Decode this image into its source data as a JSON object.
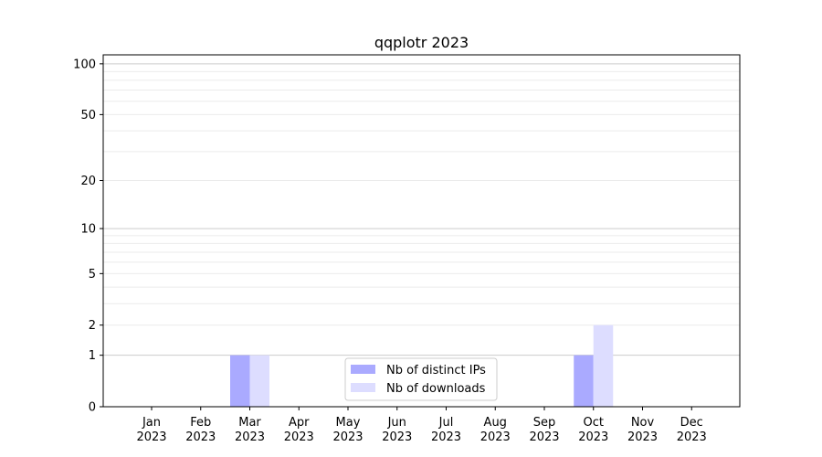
{
  "chart_data": {
    "type": "bar",
    "title": "qqplotr 2023",
    "xlabel": "",
    "ylabel": "",
    "yscale": "log(1+y)",
    "ylim": [
      0,
      113
    ],
    "yticks": [
      0,
      1,
      2,
      5,
      10,
      20,
      50,
      100
    ],
    "grid": true,
    "legend_placement": "lower center",
    "categories": [
      "Jan\n2023",
      "Feb\n2023",
      "Mar\n2023",
      "Apr\n2023",
      "May\n2023",
      "Jun\n2023",
      "Jul\n2023",
      "Aug\n2023",
      "Sep\n2023",
      "Oct\n2023",
      "Nov\n2023",
      "Dec\n2023"
    ],
    "series": [
      {
        "name": "Nb of distinct IPs",
        "color": "#aaaaff",
        "values": [
          0,
          0,
          1,
          0,
          0,
          0,
          0,
          0,
          0,
          1,
          0,
          0
        ]
      },
      {
        "name": "Nb of downloads",
        "color": "#ddddff",
        "values": [
          0,
          0,
          1,
          0,
          0,
          0,
          0,
          0,
          0,
          2,
          0,
          0
        ]
      }
    ]
  }
}
